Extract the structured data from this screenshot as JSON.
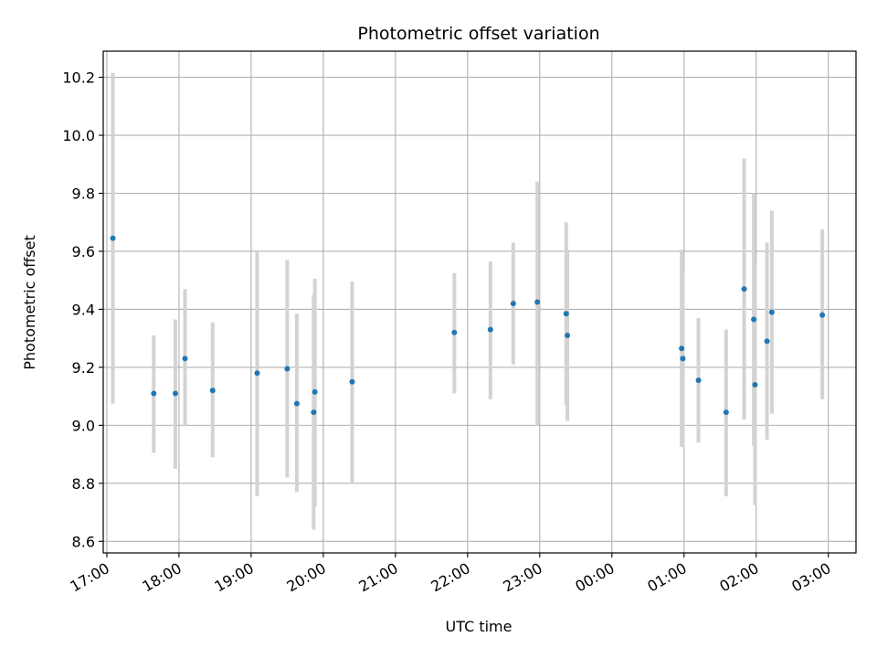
{
  "chart_data": {
    "type": "scatter",
    "title": "Photometric offset variation",
    "xlabel": "UTC time",
    "ylabel": "Photometric offset",
    "x_ticks": [
      "17:00",
      "18:00",
      "19:00",
      "20:00",
      "21:00",
      "22:00",
      "23:00",
      "00:00",
      "01:00",
      "02:00",
      "03:00"
    ],
    "y_ticks": [
      8.6,
      8.8,
      9.0,
      9.2,
      9.4,
      9.6,
      9.8,
      10.0,
      10.2
    ],
    "xlim": [
      "16:57",
      "03:23"
    ],
    "ylim": [
      8.56,
      10.29
    ],
    "grid": true,
    "marker_color": "#1f77b4",
    "errorbar_color": "#d3d3d3",
    "points": [
      {
        "t": "17:05",
        "y": 9.645,
        "lo": 9.075,
        "hi": 10.215
      },
      {
        "t": "17:39",
        "y": 9.11,
        "lo": 8.905,
        "hi": 9.31
      },
      {
        "t": "17:57",
        "y": 9.11,
        "lo": 8.85,
        "hi": 9.365
      },
      {
        "t": "18:05",
        "y": 9.23,
        "lo": 9.0,
        "hi": 9.47
      },
      {
        "t": "18:28",
        "y": 9.12,
        "lo": 8.89,
        "hi": 9.355
      },
      {
        "t": "19:05",
        "y": 9.18,
        "lo": 8.755,
        "hi": 9.6
      },
      {
        "t": "19:30",
        "y": 9.195,
        "lo": 8.82,
        "hi": 9.57
      },
      {
        "t": "19:38",
        "y": 9.075,
        "lo": 8.77,
        "hi": 9.385
      },
      {
        "t": "19:52",
        "y": 9.045,
        "lo": 8.64,
        "hi": 9.45
      },
      {
        "t": "19:53",
        "y": 9.115,
        "lo": 8.72,
        "hi": 9.505
      },
      {
        "t": "20:24",
        "y": 9.15,
        "lo": 8.8,
        "hi": 9.495
      },
      {
        "t": "21:49",
        "y": 9.32,
        "lo": 9.11,
        "hi": 9.525
      },
      {
        "t": "22:19",
        "y": 9.33,
        "lo": 9.09,
        "hi": 9.565
      },
      {
        "t": "22:38",
        "y": 9.42,
        "lo": 9.21,
        "hi": 9.63
      },
      {
        "t": "22:58",
        "y": 9.425,
        "lo": 9.0,
        "hi": 9.84
      },
      {
        "t": "23:22",
        "y": 9.385,
        "lo": 9.07,
        "hi": 9.7
      },
      {
        "t": "23:23",
        "y": 9.31,
        "lo": 9.015,
        "hi": 9.605
      },
      {
        "t": "00:58",
        "y": 9.265,
        "lo": 8.925,
        "hi": 9.605
      },
      {
        "t": "00:59",
        "y": 9.23,
        "lo": 8.925,
        "hi": 9.535
      },
      {
        "t": "01:12",
        "y": 9.155,
        "lo": 8.94,
        "hi": 9.37
      },
      {
        "t": "01:35",
        "y": 9.045,
        "lo": 8.755,
        "hi": 9.33
      },
      {
        "t": "01:50",
        "y": 9.47,
        "lo": 9.02,
        "hi": 9.92
      },
      {
        "t": "01:58",
        "y": 9.365,
        "lo": 8.93,
        "hi": 9.8
      },
      {
        "t": "01:59",
        "y": 9.14,
        "lo": 8.725,
        "hi": 9.555
      },
      {
        "t": "02:09",
        "y": 9.29,
        "lo": 8.95,
        "hi": 9.63
      },
      {
        "t": "02:13",
        "y": 9.39,
        "lo": 9.04,
        "hi": 9.74
      },
      {
        "t": "02:55",
        "y": 9.38,
        "lo": 9.09,
        "hi": 9.675
      }
    ]
  }
}
